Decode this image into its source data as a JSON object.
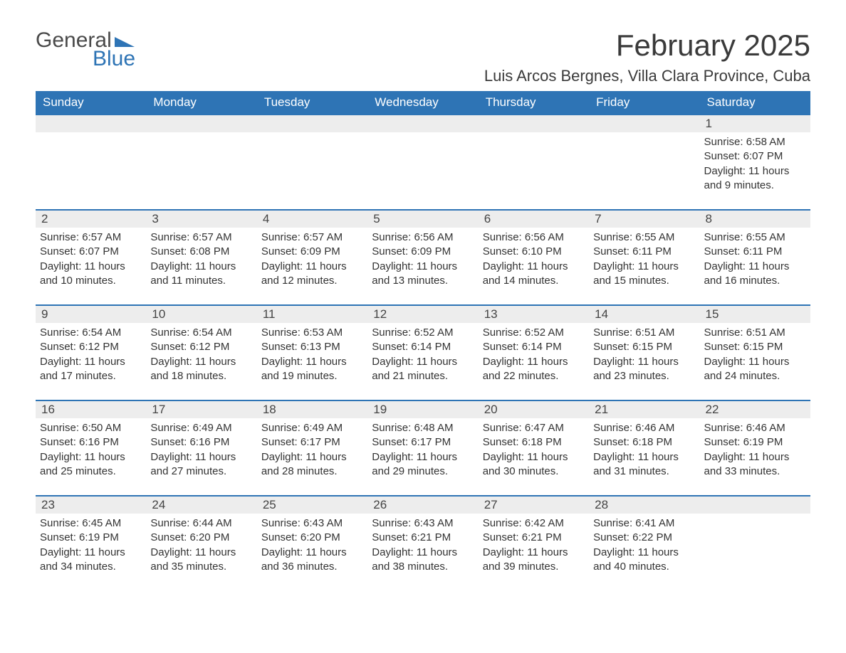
{
  "brand": {
    "line1": "General",
    "line2": "Blue",
    "color": "#2e74b5"
  },
  "title": "February 2025",
  "location": "Luis Arcos Bergnes, Villa Clara Province, Cuba",
  "colors": {
    "header_bg": "#2e74b5",
    "header_text": "#ffffff",
    "row_divider": "#2e74b5",
    "daynum_bg": "#ededed",
    "text": "#333333",
    "background": "#ffffff"
  },
  "weekdays": [
    "Sunday",
    "Monday",
    "Tuesday",
    "Wednesday",
    "Thursday",
    "Friday",
    "Saturday"
  ],
  "labels": {
    "sunrise_prefix": "Sunrise: ",
    "sunset_prefix": "Sunset: ",
    "daylight_prefix": "Daylight: ",
    "daylight_suffix": "."
  },
  "weeks": [
    [
      null,
      null,
      null,
      null,
      null,
      null,
      {
        "day": "1",
        "sunrise": "6:58 AM",
        "sunset": "6:07 PM",
        "daylight": "11 hours and 9 minutes"
      }
    ],
    [
      {
        "day": "2",
        "sunrise": "6:57 AM",
        "sunset": "6:07 PM",
        "daylight": "11 hours and 10 minutes"
      },
      {
        "day": "3",
        "sunrise": "6:57 AM",
        "sunset": "6:08 PM",
        "daylight": "11 hours and 11 minutes"
      },
      {
        "day": "4",
        "sunrise": "6:57 AM",
        "sunset": "6:09 PM",
        "daylight": "11 hours and 12 minutes"
      },
      {
        "day": "5",
        "sunrise": "6:56 AM",
        "sunset": "6:09 PM",
        "daylight": "11 hours and 13 minutes"
      },
      {
        "day": "6",
        "sunrise": "6:56 AM",
        "sunset": "6:10 PM",
        "daylight": "11 hours and 14 minutes"
      },
      {
        "day": "7",
        "sunrise": "6:55 AM",
        "sunset": "6:11 PM",
        "daylight": "11 hours and 15 minutes"
      },
      {
        "day": "8",
        "sunrise": "6:55 AM",
        "sunset": "6:11 PM",
        "daylight": "11 hours and 16 minutes"
      }
    ],
    [
      {
        "day": "9",
        "sunrise": "6:54 AM",
        "sunset": "6:12 PM",
        "daylight": "11 hours and 17 minutes"
      },
      {
        "day": "10",
        "sunrise": "6:54 AM",
        "sunset": "6:12 PM",
        "daylight": "11 hours and 18 minutes"
      },
      {
        "day": "11",
        "sunrise": "6:53 AM",
        "sunset": "6:13 PM",
        "daylight": "11 hours and 19 minutes"
      },
      {
        "day": "12",
        "sunrise": "6:52 AM",
        "sunset": "6:14 PM",
        "daylight": "11 hours and 21 minutes"
      },
      {
        "day": "13",
        "sunrise": "6:52 AM",
        "sunset": "6:14 PM",
        "daylight": "11 hours and 22 minutes"
      },
      {
        "day": "14",
        "sunrise": "6:51 AM",
        "sunset": "6:15 PM",
        "daylight": "11 hours and 23 minutes"
      },
      {
        "day": "15",
        "sunrise": "6:51 AM",
        "sunset": "6:15 PM",
        "daylight": "11 hours and 24 minutes"
      }
    ],
    [
      {
        "day": "16",
        "sunrise": "6:50 AM",
        "sunset": "6:16 PM",
        "daylight": "11 hours and 25 minutes"
      },
      {
        "day": "17",
        "sunrise": "6:49 AM",
        "sunset": "6:16 PM",
        "daylight": "11 hours and 27 minutes"
      },
      {
        "day": "18",
        "sunrise": "6:49 AM",
        "sunset": "6:17 PM",
        "daylight": "11 hours and 28 minutes"
      },
      {
        "day": "19",
        "sunrise": "6:48 AM",
        "sunset": "6:17 PM",
        "daylight": "11 hours and 29 minutes"
      },
      {
        "day": "20",
        "sunrise": "6:47 AM",
        "sunset": "6:18 PM",
        "daylight": "11 hours and 30 minutes"
      },
      {
        "day": "21",
        "sunrise": "6:46 AM",
        "sunset": "6:18 PM",
        "daylight": "11 hours and 31 minutes"
      },
      {
        "day": "22",
        "sunrise": "6:46 AM",
        "sunset": "6:19 PM",
        "daylight": "11 hours and 33 minutes"
      }
    ],
    [
      {
        "day": "23",
        "sunrise": "6:45 AM",
        "sunset": "6:19 PM",
        "daylight": "11 hours and 34 minutes"
      },
      {
        "day": "24",
        "sunrise": "6:44 AM",
        "sunset": "6:20 PM",
        "daylight": "11 hours and 35 minutes"
      },
      {
        "day": "25",
        "sunrise": "6:43 AM",
        "sunset": "6:20 PM",
        "daylight": "11 hours and 36 minutes"
      },
      {
        "day": "26",
        "sunrise": "6:43 AM",
        "sunset": "6:21 PM",
        "daylight": "11 hours and 38 minutes"
      },
      {
        "day": "27",
        "sunrise": "6:42 AM",
        "sunset": "6:21 PM",
        "daylight": "11 hours and 39 minutes"
      },
      {
        "day": "28",
        "sunrise": "6:41 AM",
        "sunset": "6:22 PM",
        "daylight": "11 hours and 40 minutes"
      },
      null
    ]
  ]
}
